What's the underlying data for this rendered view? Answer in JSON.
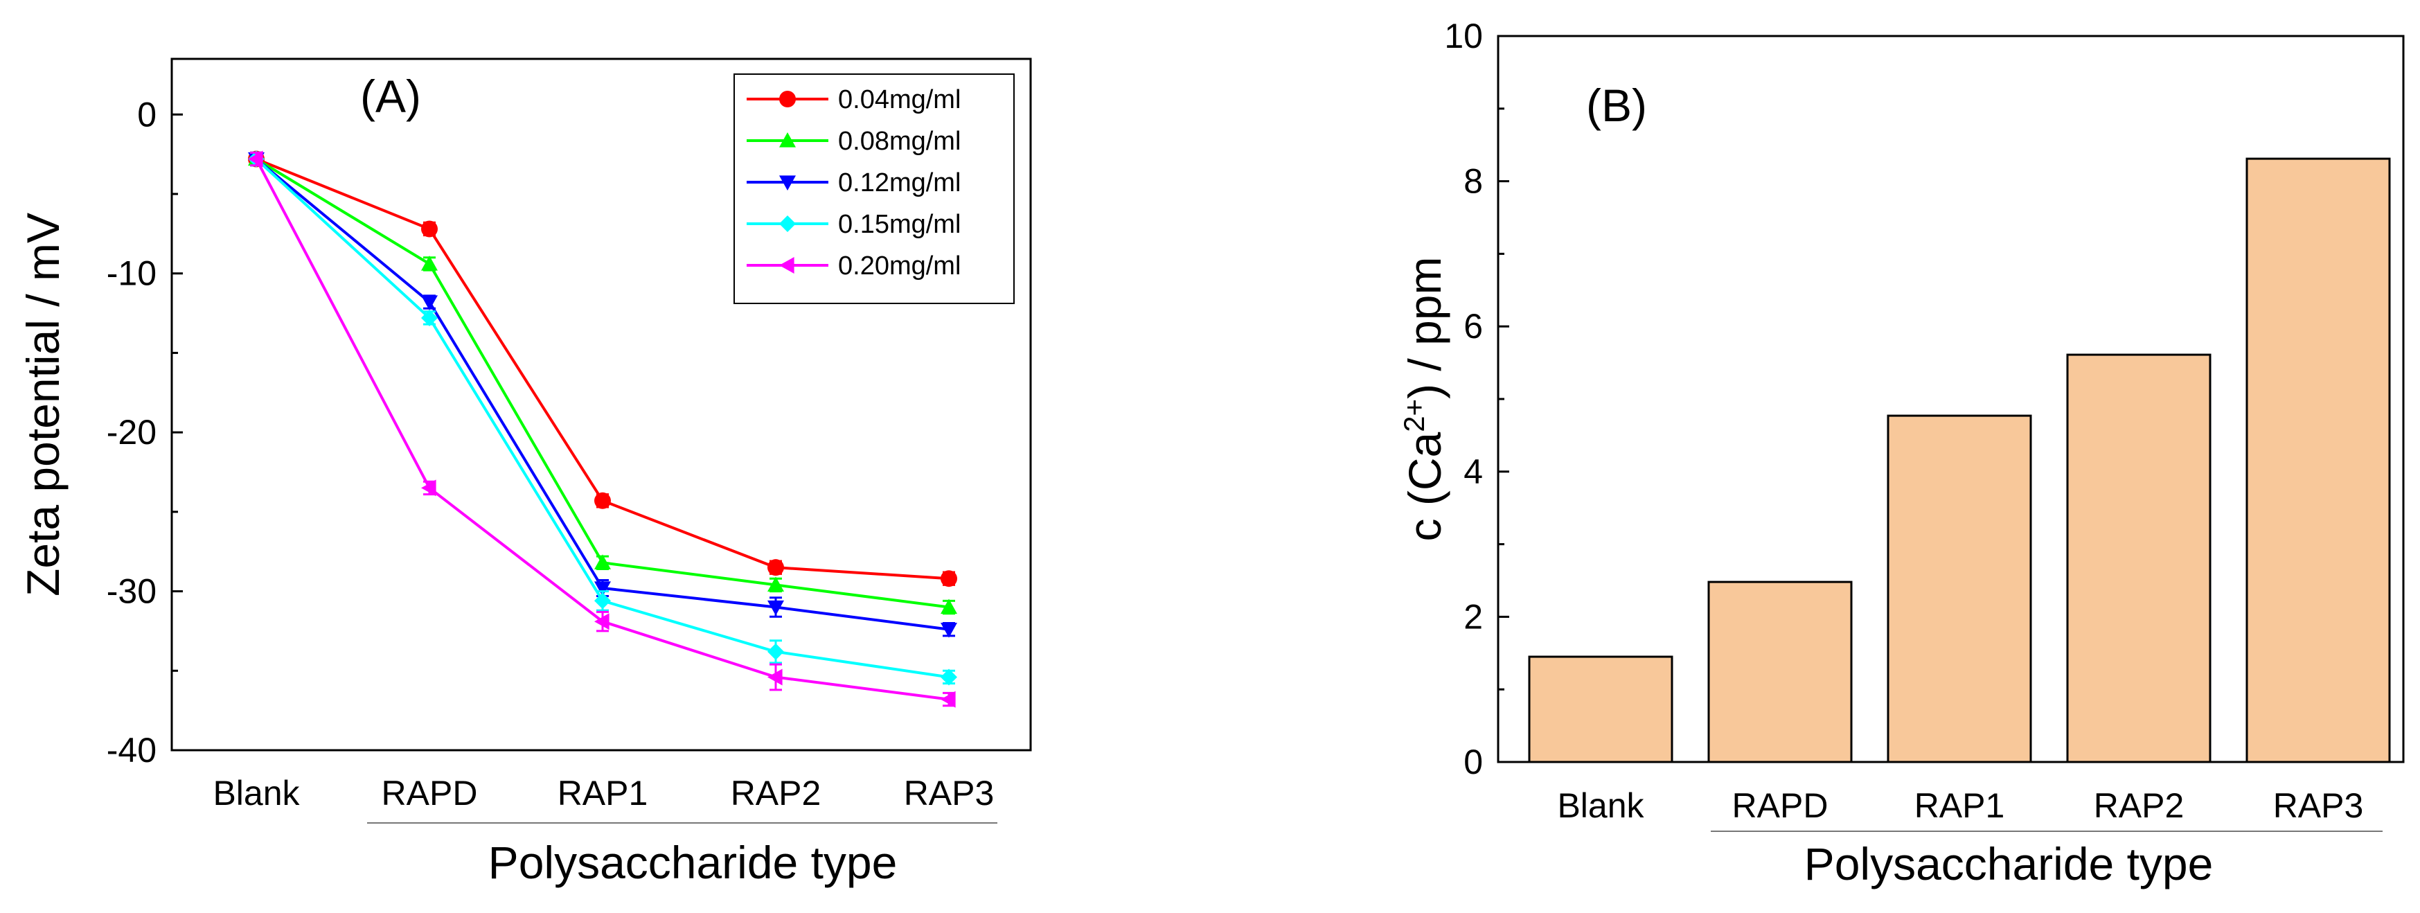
{
  "chart_data": [
    {
      "panel": "(A)",
      "type": "line",
      "xlabel": "Polysaccharide type",
      "ylabel": "Zeta potential / mV",
      "categories": [
        "Blank",
        "RAPD",
        "RAP1",
        "RAP2",
        "RAP3"
      ],
      "ylim": [
        -40,
        3.5
      ],
      "yticks": [
        0,
        -10,
        -20,
        -30,
        -40
      ],
      "ytick_labels": [
        "0",
        "-10",
        "-20",
        "-30",
        "-40"
      ],
      "legend_position": "top-right",
      "series": [
        {
          "name": "0.04mg/ml",
          "color": "#ff0000",
          "marker": "circle",
          "values": [
            -2.8,
            -7.2,
            -24.3,
            -28.5,
            -29.2
          ],
          "errors": [
            0.4,
            0.4,
            0.4,
            0.4,
            0.4
          ]
        },
        {
          "name": "0.08mg/ml",
          "color": "#00ff00",
          "marker": "triangle-up",
          "values": [
            -2.8,
            -9.4,
            -28.2,
            -29.6,
            -31.0
          ],
          "errors": [
            0.4,
            0.4,
            0.4,
            0.4,
            0.4
          ]
        },
        {
          "name": "0.12mg/ml",
          "color": "#0000ff",
          "marker": "triangle-down",
          "values": [
            -2.8,
            -11.8,
            -29.8,
            -31.0,
            -32.4
          ],
          "errors": [
            0.4,
            0.4,
            0.5,
            0.6,
            0.4
          ]
        },
        {
          "name": "0.15mg/ml",
          "color": "#00ffff",
          "marker": "diamond",
          "values": [
            -2.8,
            -12.8,
            -30.6,
            -33.8,
            -35.4
          ],
          "errors": [
            0.4,
            0.4,
            0.6,
            0.7,
            0.4
          ]
        },
        {
          "name": "0.20mg/ml",
          "color": "#ff00ff",
          "marker": "triangle-left",
          "values": [
            -2.8,
            -23.5,
            -31.9,
            -35.4,
            -36.8
          ],
          "errors": [
            0.4,
            0.4,
            0.6,
            0.8,
            0.4
          ]
        }
      ]
    },
    {
      "panel": "(B)",
      "type": "bar",
      "xlabel": "Polysaccharide type",
      "ylabel": "c (Ca2+) / ppm",
      "ylabel_parts": {
        "before": "c (Ca",
        "superscript": "2+",
        "after": ") / ppm"
      },
      "categories": [
        "Blank",
        "RAPD",
        "RAP1",
        "RAP2",
        "RAP3"
      ],
      "values": [
        1.45,
        2.48,
        4.77,
        5.61,
        8.31
      ],
      "bar_color": "#f8c89a",
      "ylim": [
        0,
        10
      ],
      "yticks": [
        0,
        2,
        4,
        6,
        8,
        10
      ],
      "ytick_labels": [
        "0",
        "2",
        "4",
        "6",
        "8",
        "10"
      ]
    }
  ]
}
